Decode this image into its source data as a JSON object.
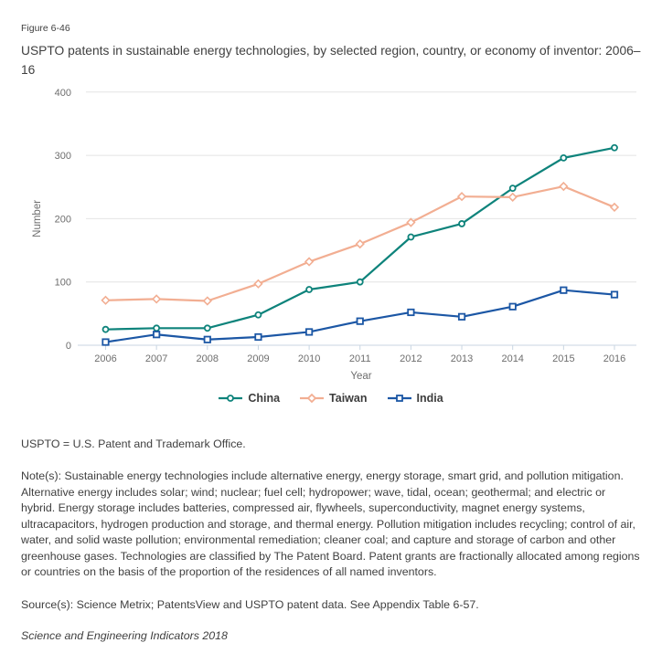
{
  "figure": {
    "label": "Figure 6-46",
    "title": "USPTO patents in sustainable energy technologies, by selected region, country, or economy of inventor: 2006–16"
  },
  "chart_data": {
    "type": "line",
    "x": [
      2006,
      2007,
      2008,
      2009,
      2010,
      2011,
      2012,
      2013,
      2014,
      2015,
      2016
    ],
    "x_tick_labels": [
      "2006",
      "2007",
      "2008",
      "2009",
      "2010",
      "2011",
      "2012",
      "2013",
      "2014",
      "2015",
      "2016"
    ],
    "series": [
      {
        "name": "China",
        "color": "#0E837B",
        "marker": "circle",
        "values": [
          25,
          27,
          27,
          48,
          88,
          100,
          171,
          192,
          248,
          296,
          312
        ]
      },
      {
        "name": "Taiwan",
        "color": "#F2AE92",
        "marker": "diamond",
        "values": [
          71,
          73,
          70,
          97,
          132,
          160,
          194,
          235,
          234,
          251,
          218
        ]
      },
      {
        "name": "India",
        "color": "#1C57A5",
        "marker": "square",
        "values": [
          5,
          17,
          9,
          13,
          21,
          38,
          52,
          45,
          61,
          87,
          80
        ]
      }
    ],
    "xlabel": "Year",
    "ylabel": "Number",
    "ylim": [
      0,
      400
    ],
    "yticks": [
      0,
      100,
      200,
      300,
      400
    ],
    "grid": true,
    "legend_position": "bottom",
    "colors": {
      "gridline": "#e4e4e4",
      "axis": "#c9d6e2",
      "tick_label": "#6e6e6e",
      "axis_title": "#6e6e6e"
    }
  },
  "notes": {
    "abbreviation": "USPTO = U.S. Patent and Trademark Office.",
    "body": "Note(s): Sustainable energy technologies include alternative energy, energy storage, smart grid, and pollution mitigation. Alternative energy includes solar; wind; nuclear; fuel cell; hydropower; wave, tidal, ocean; geothermal; and electric or hybrid. Energy storage includes batteries, compressed air, flywheels, superconductivity, magnet energy systems, ultracapacitors, hydrogen production and storage, and thermal energy. Pollution mitigation includes recycling; control of air, water, and solid waste pollution; environmental remediation; cleaner coal; and capture and storage of carbon and other greenhouse gases. Technologies are classified by The Patent Board. Patent grants are fractionally allocated among regions or countries on the basis of the proportion of the residences of all named inventors.",
    "source": "Source(s): Science Metrix; PatentsView and USPTO patent data. See Appendix Table 6-57.",
    "footer": "Science and Engineering Indicators 2018"
  }
}
